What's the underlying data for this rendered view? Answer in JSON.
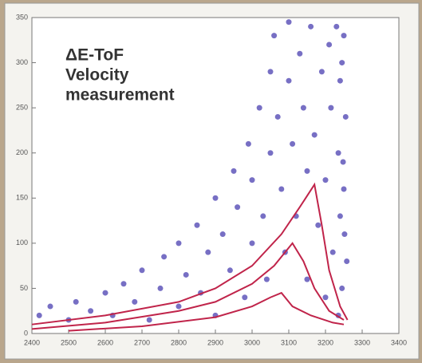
{
  "chart_data": {
    "type": "scatter",
    "annotations": [
      "ΔE-ToF",
      "Velocity",
      "measurement"
    ],
    "xlim": [
      2400,
      3400
    ],
    "xticks": [
      2400,
      2500,
      2600,
      2700,
      2800,
      2900,
      3000,
      3100,
      3200,
      3300,
      3400
    ],
    "ylim": [
      0,
      350
    ],
    "yticks": [
      0,
      50,
      100,
      150,
      200,
      250,
      300,
      350
    ],
    "grid": false,
    "series": [
      {
        "type": "scatter",
        "color": "#4a3fb0",
        "x": [
          2420,
          2450,
          2500,
          2520,
          2560,
          2600,
          2620,
          2650,
          2680,
          2700,
          2720,
          2750,
          2760,
          2800,
          2800,
          2820,
          2850,
          2860,
          2880,
          2900,
          2900,
          2920,
          2940,
          2950,
          2960,
          2980,
          2990,
          3000,
          3000,
          3020,
          3030,
          3040,
          3050,
          3050,
          3060,
          3070,
          3080,
          3090,
          3100,
          3100,
          3110,
          3120,
          3130,
          3140,
          3150,
          3150,
          3160,
          3170,
          3180,
          3190,
          3200,
          3200,
          3210,
          3215,
          3220,
          3230,
          3235,
          3240,
          3240,
          3245,
          3250,
          3250,
          3255,
          3258,
          3235,
          3245,
          3252,
          3248
        ],
        "y": [
          20,
          30,
          15,
          35,
          25,
          45,
          20,
          55,
          35,
          70,
          15,
          50,
          85,
          30,
          100,
          65,
          120,
          45,
          90,
          150,
          20,
          110,
          70,
          180,
          140,
          40,
          210,
          100,
          170,
          250,
          130,
          60,
          290,
          200,
          330,
          240,
          160,
          90,
          345,
          280,
          210,
          130,
          310,
          250,
          60,
          180,
          340,
          220,
          120,
          290,
          40,
          170,
          320,
          250,
          90,
          340,
          200,
          130,
          280,
          50,
          330,
          160,
          240,
          80,
          20,
          300,
          110,
          190
        ]
      },
      {
        "type": "line",
        "color": "#c0244a",
        "x": [
          2400,
          2600,
          2800,
          2900,
          3000,
          3080,
          3130,
          3170,
          3190,
          3210,
          3240,
          3260
        ],
        "y": [
          10,
          20,
          35,
          50,
          75,
          110,
          140,
          165,
          120,
          70,
          30,
          15
        ]
      },
      {
        "type": "line",
        "color": "#c0244a",
        "x": [
          2400,
          2600,
          2800,
          2900,
          3000,
          3060,
          3110,
          3140,
          3170,
          3210,
          3250
        ],
        "y": [
          5,
          12,
          25,
          35,
          55,
          75,
          100,
          80,
          50,
          25,
          15
        ]
      },
      {
        "type": "line",
        "color": "#c0244a",
        "x": [
          2500,
          2700,
          2900,
          3000,
          3050,
          3080,
          3110,
          3160,
          3220,
          3250
        ],
        "y": [
          3,
          8,
          18,
          30,
          40,
          45,
          30,
          20,
          12,
          10
        ]
      }
    ]
  }
}
